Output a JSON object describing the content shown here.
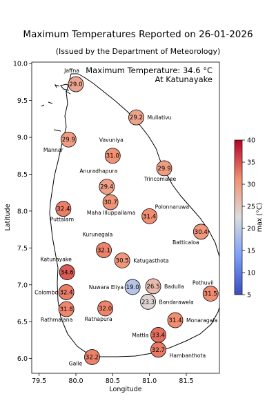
{
  "title": "Maximum Temperatures Reported on 26-01-2026",
  "subtitle": "(Issued by the Department of Meteorology)",
  "chart_data": {
    "type": "scatter",
    "title": "Maximum Temperatures Reported on 26-01-2026",
    "xlabel": "Longitude",
    "ylabel": "Latitude",
    "xlim": [
      79.4,
      81.95
    ],
    "ylim": [
      5.8,
      10.02
    ],
    "xticks": [
      "79.5",
      "80.0",
      "80.5",
      "81.0",
      "81.5"
    ],
    "yticks": [
      "6.0",
      "6.5",
      "7.0",
      "7.5",
      "8.0",
      "8.5",
      "9.0",
      "9.5",
      "10.0"
    ],
    "annotation": [
      "Maximum Temperature: 34.6 °C",
      "At Katunayake"
    ],
    "colorbar": {
      "label": "max (°C)",
      "range": [
        5,
        40
      ],
      "ticks": [
        "5",
        "10",
        "15",
        "20",
        "25",
        "30",
        "35",
        "40"
      ],
      "colormap": "coolwarm"
    },
    "stations": [
      {
        "name": "Jaffna",
        "lon": 80.0,
        "lat": 9.72,
        "value": "29.0"
      },
      {
        "name": "Mullativu",
        "lon": 80.82,
        "lat": 9.27,
        "value": "29.2"
      },
      {
        "name": "Mannar",
        "lon": 79.9,
        "lat": 8.97,
        "value": "29.9"
      },
      {
        "name": "Vavuniya",
        "lon": 80.5,
        "lat": 8.75,
        "value": "31.0"
      },
      {
        "name": "Trincomalee",
        "lon": 81.2,
        "lat": 8.58,
        "value": "29.9"
      },
      {
        "name": "Anuradhapura",
        "lon": 80.42,
        "lat": 8.33,
        "value": "29.4"
      },
      {
        "name": "Maha Illuppallama",
        "lon": 80.47,
        "lat": 8.12,
        "value": "30.7"
      },
      {
        "name": "Puttalam",
        "lon": 79.83,
        "lat": 8.03,
        "value": "32.4"
      },
      {
        "name": "Polonnaruwa",
        "lon": 81.0,
        "lat": 7.93,
        "value": "31.4"
      },
      {
        "name": "Batticaloa",
        "lon": 81.7,
        "lat": 7.72,
        "value": "30.4"
      },
      {
        "name": "Kurunegala",
        "lon": 80.38,
        "lat": 7.47,
        "value": "32.1"
      },
      {
        "name": "Katugasthota",
        "lon": 80.63,
        "lat": 7.33,
        "value": "30.5"
      },
      {
        "name": "Katunayake",
        "lon": 79.88,
        "lat": 7.17,
        "value": "34.6"
      },
      {
        "name": "Colombo",
        "lon": 79.87,
        "lat": 6.9,
        "value": "32.4"
      },
      {
        "name": "Nuwara Eliya",
        "lon": 80.77,
        "lat": 6.97,
        "value": "19.0"
      },
      {
        "name": "Badulla",
        "lon": 81.05,
        "lat": 6.98,
        "value": "26.5"
      },
      {
        "name": "Pothuvil",
        "lon": 81.83,
        "lat": 6.88,
        "value": "31.5"
      },
      {
        "name": "Bandarawela",
        "lon": 80.98,
        "lat": 6.77,
        "value": "23.3"
      },
      {
        "name": "Ratnapura",
        "lon": 80.4,
        "lat": 6.68,
        "value": "32.0"
      },
      {
        "name": "Rathmalana",
        "lon": 79.87,
        "lat": 6.67,
        "value": "31.8"
      },
      {
        "name": "Monaragala",
        "lon": 81.35,
        "lat": 6.52,
        "value": "31.4"
      },
      {
        "name": "Mattla",
        "lon": 81.12,
        "lat": 6.32,
        "value": "33.4"
      },
      {
        "name": "Hambanthota",
        "lon": 81.12,
        "lat": 6.12,
        "value": "32.7"
      },
      {
        "name": "Galle",
        "lon": 80.22,
        "lat": 6.02,
        "value": "32.2"
      }
    ]
  }
}
